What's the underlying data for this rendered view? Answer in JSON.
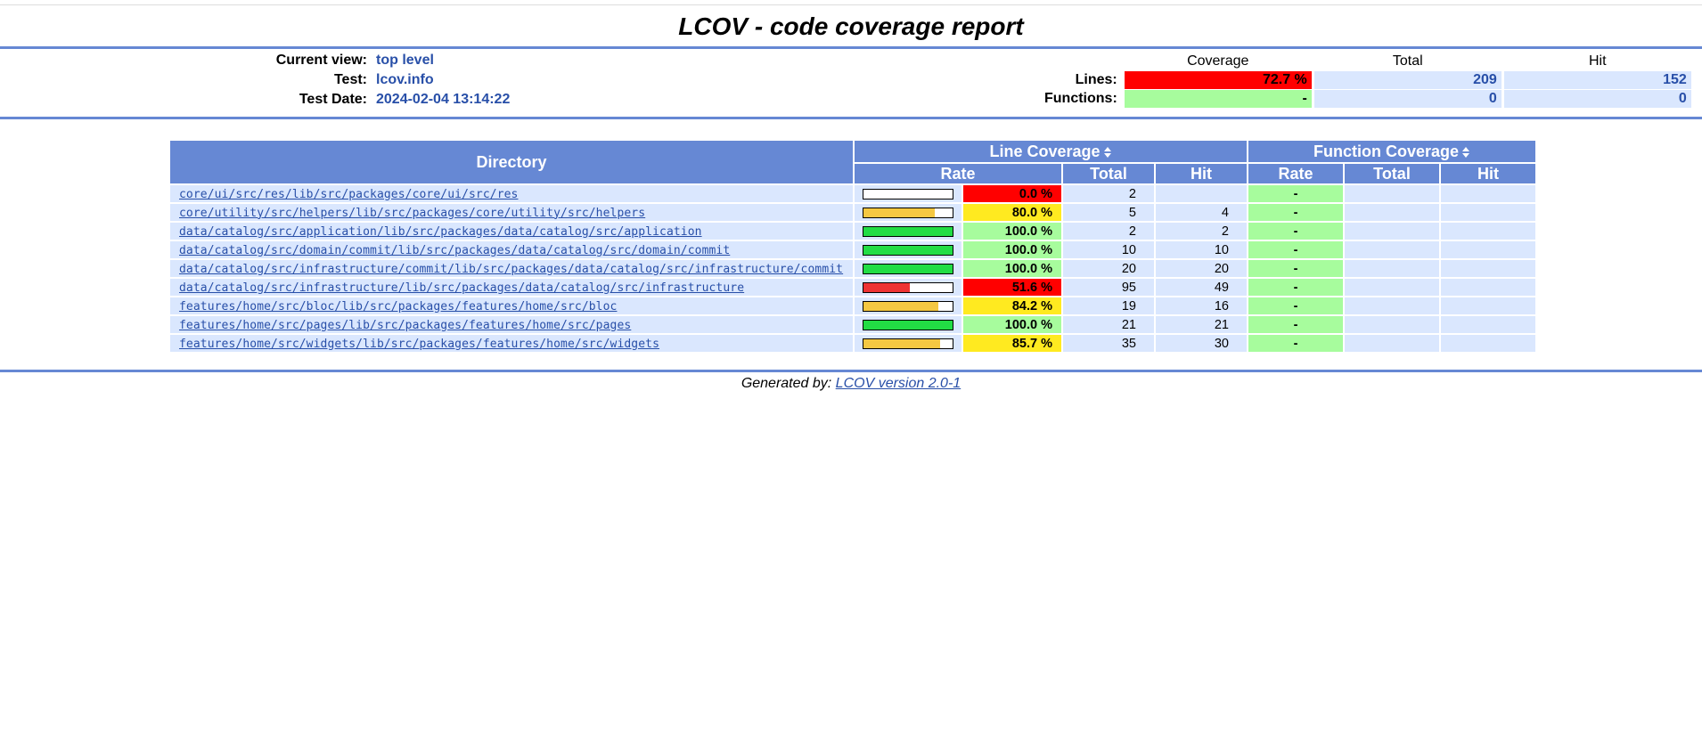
{
  "title": "LCOV - code coverage report",
  "info": {
    "current_view_label": "Current view:",
    "current_view": "top level",
    "test_label": "Test:",
    "test": "lcov.info",
    "test_date_label": "Test Date:",
    "test_date": "2024-02-04 13:14:22"
  },
  "summary": {
    "headers": {
      "coverage": "Coverage",
      "total": "Total",
      "hit": "Hit"
    },
    "lines": {
      "label": "Lines:",
      "rate": "72.7 %",
      "total": "209",
      "hit": "152",
      "level": "red"
    },
    "functions": {
      "label": "Functions:",
      "rate": "-",
      "total": "0",
      "hit": "0",
      "level": "green"
    }
  },
  "table": {
    "directory_header": "Directory",
    "line_coverage_header": "Line Coverage",
    "function_coverage_header": "Function Coverage",
    "rate_header": "Rate",
    "total_header": "Total",
    "hit_header": "Hit",
    "rows": [
      {
        "dir": "core/ui/src/res/lib/src/packages/core/ui/src/res",
        "pct_value": 0.0,
        "rate": "0.0 %",
        "level": "red",
        "total": "2",
        "hit": "",
        "fn_rate": "-"
      },
      {
        "dir": "core/utility/src/helpers/lib/src/packages/core/utility/src/helpers",
        "pct_value": 80.0,
        "rate": "80.0 %",
        "level": "yellow",
        "total": "5",
        "hit": "4",
        "fn_rate": "-"
      },
      {
        "dir": "data/catalog/src/application/lib/src/packages/data/catalog/src/application",
        "pct_value": 100.0,
        "rate": "100.0 %",
        "level": "green",
        "total": "2",
        "hit": "2",
        "fn_rate": "-"
      },
      {
        "dir": "data/catalog/src/domain/commit/lib/src/packages/data/catalog/src/domain/commit",
        "pct_value": 100.0,
        "rate": "100.0 %",
        "level": "green",
        "total": "10",
        "hit": "10",
        "fn_rate": "-"
      },
      {
        "dir": "data/catalog/src/infrastructure/commit/lib/src/packages/data/catalog/src/infrastructure/commit",
        "pct_value": 100.0,
        "rate": "100.0 %",
        "level": "green",
        "total": "20",
        "hit": "20",
        "fn_rate": "-"
      },
      {
        "dir": "data/catalog/src/infrastructure/lib/src/packages/data/catalog/src/infrastructure",
        "pct_value": 51.6,
        "rate": "51.6 %",
        "level": "red",
        "total": "95",
        "hit": "49",
        "fn_rate": "-"
      },
      {
        "dir": "features/home/src/bloc/lib/src/packages/features/home/src/bloc",
        "pct_value": 84.2,
        "rate": "84.2 %",
        "level": "yellow",
        "total": "19",
        "hit": "16",
        "fn_rate": "-"
      },
      {
        "dir": "features/home/src/pages/lib/src/packages/features/home/src/pages",
        "pct_value": 100.0,
        "rate": "100.0 %",
        "level": "green",
        "total": "21",
        "hit": "21",
        "fn_rate": "-"
      },
      {
        "dir": "features/home/src/widgets/lib/src/packages/features/home/src/widgets",
        "pct_value": 85.7,
        "rate": "85.7 %",
        "level": "yellow",
        "total": "35",
        "hit": "30",
        "fn_rate": "-"
      }
    ]
  },
  "footer": {
    "prefix": "Generated by:",
    "link": "LCOV version 2.0-1"
  },
  "colors": {
    "header_blue": "#6688d4",
    "row_bg": "#dae7fe",
    "text_blue": "#284fa8",
    "rate_red": "#ff0000",
    "rate_yellow": "#ffea20",
    "rate_green": "#a7fc9d",
    "bar_red": "#ee3333",
    "bar_yellow": "#f5c842",
    "bar_green": "#22dd44"
  }
}
